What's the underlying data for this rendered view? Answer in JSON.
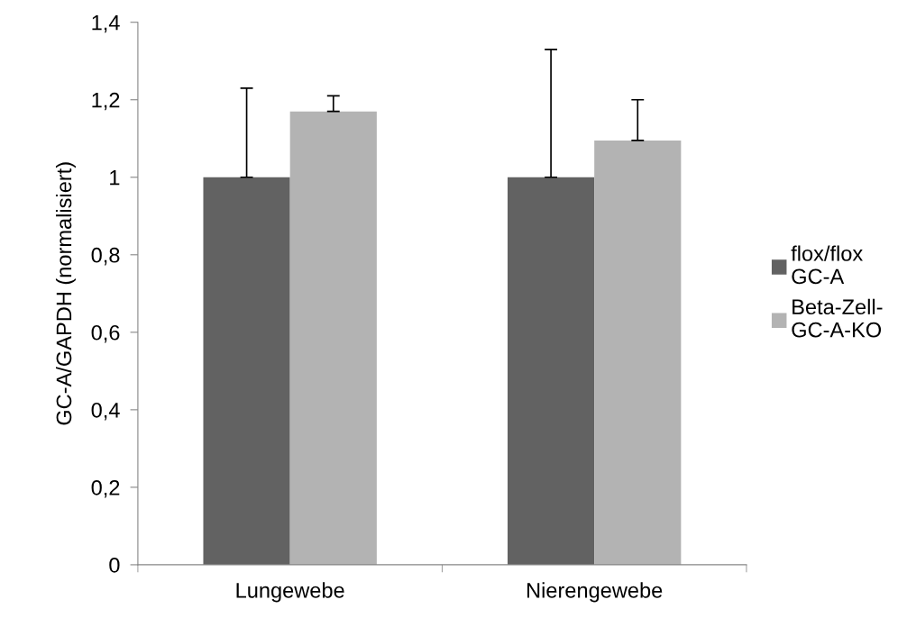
{
  "chart_data": {
    "type": "bar",
    "ylabel": "GC-A/GAPDH (normalisiert)",
    "categories": [
      "Lungewebe",
      "Nierengewebe"
    ],
    "series": [
      {
        "name": "flox/flox\nGC-A",
        "color": "#626262",
        "values": [
          1.0,
          1.0
        ],
        "errors": [
          [
            1.0,
            1.23
          ],
          [
            1.0,
            1.33
          ]
        ]
      },
      {
        "name": "Beta-Zell-\nGC-A-KO",
        "color": "#b3b3b3",
        "values": [
          1.17,
          1.095
        ],
        "errors": [
          [
            1.17,
            1.21
          ],
          [
            1.095,
            1.2
          ]
        ]
      }
    ],
    "ylim": [
      0,
      1.4
    ],
    "yticks": [
      0,
      {
        "value": 0.2,
        "label": "0,2"
      },
      {
        "value": 0.4,
        "label": "0,4"
      },
      {
        "value": 0.6,
        "label": "0,6"
      },
      {
        "value": 0.8,
        "label": "0,8"
      },
      1,
      {
        "value": 1.2,
        "label": "1,2"
      },
      {
        "value": 1.4,
        "label": "1,4"
      }
    ],
    "grid": false,
    "legend": "right"
  }
}
